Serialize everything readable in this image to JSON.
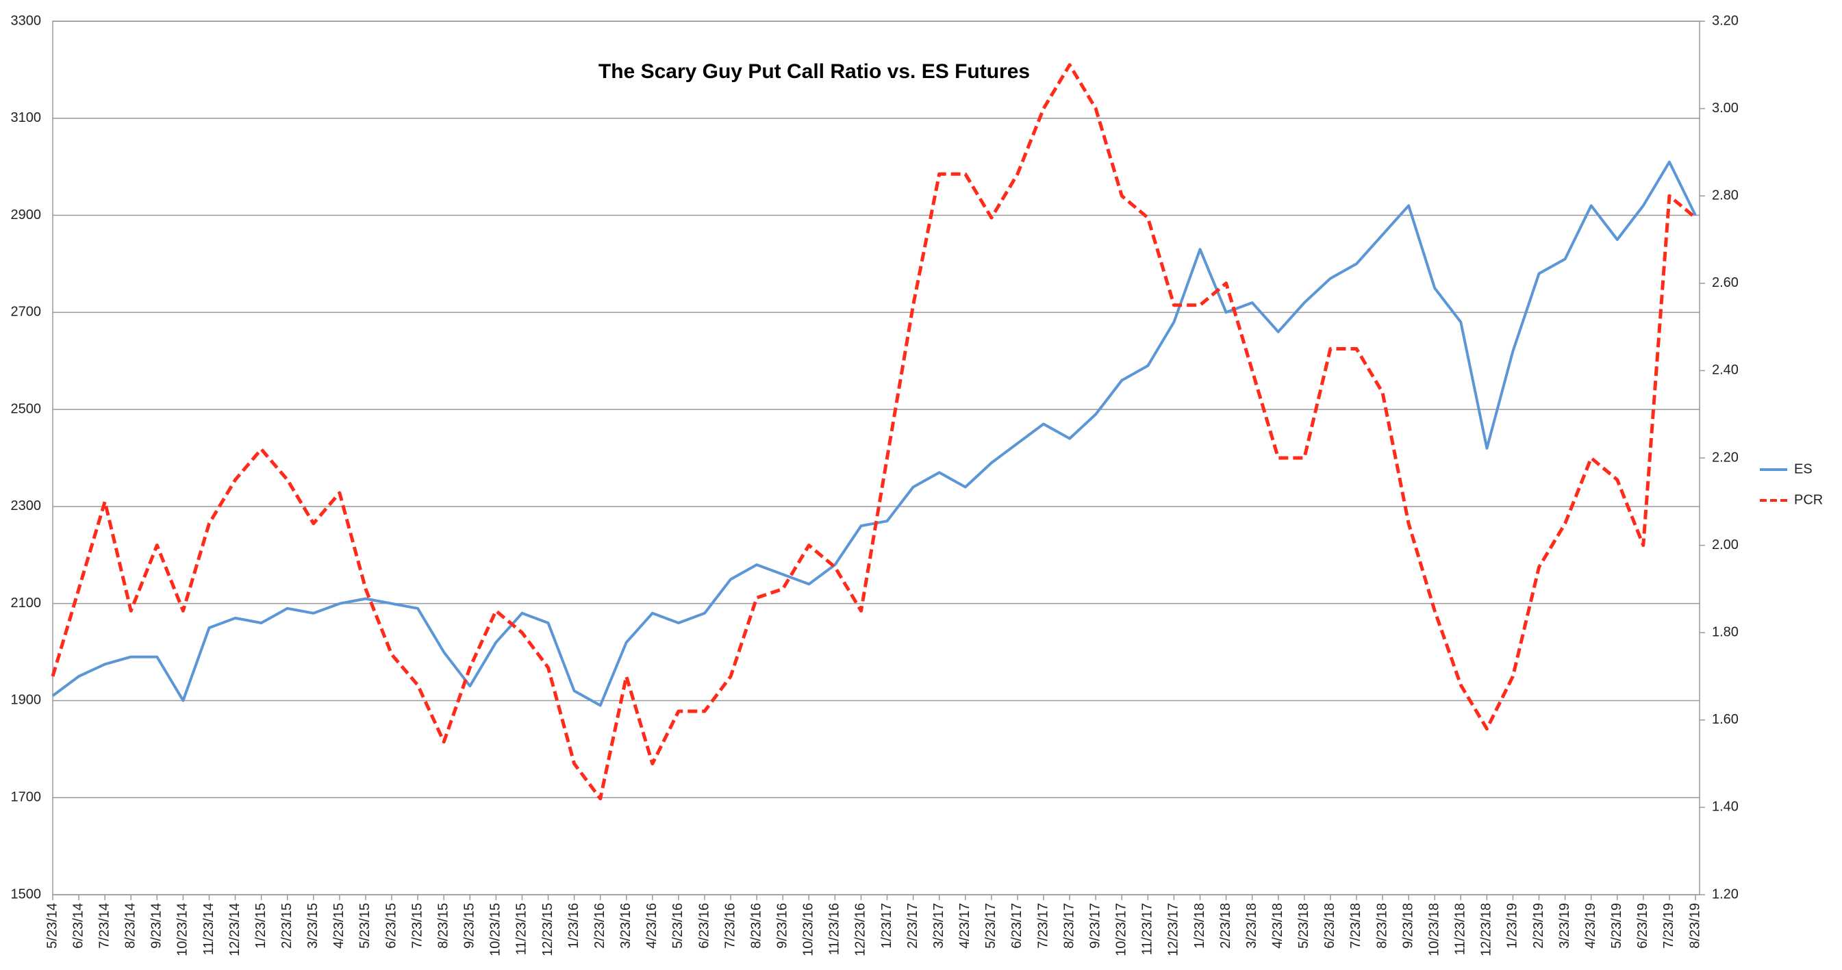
{
  "chart_data": {
    "type": "line",
    "title": "The Scary Guy Put Call Ratio vs. ES Futures",
    "categories": [
      "5/23/14",
      "6/23/14",
      "7/23/14",
      "8/23/14",
      "9/23/14",
      "10/23/14",
      "11/23/14",
      "12/23/14",
      "1/23/15",
      "2/23/15",
      "3/23/15",
      "4/23/15",
      "5/23/15",
      "6/23/15",
      "7/23/15",
      "8/23/15",
      "9/23/15",
      "10/23/15",
      "11/23/15",
      "12/23/15",
      "1/23/16",
      "2/23/16",
      "3/23/16",
      "4/23/16",
      "5/23/16",
      "6/23/16",
      "7/23/16",
      "8/23/16",
      "9/23/16",
      "10/23/16",
      "11/23/16",
      "12/23/16",
      "1/23/17",
      "2/23/17",
      "3/23/17",
      "4/23/17",
      "5/23/17",
      "6/23/17",
      "7/23/17",
      "8/23/17",
      "9/23/17",
      "10/23/17",
      "11/23/17",
      "12/23/17",
      "1/23/18",
      "2/23/18",
      "3/23/18",
      "4/23/18",
      "5/23/18",
      "6/23/18",
      "7/23/18",
      "8/23/18",
      "9/23/18",
      "10/23/18",
      "11/23/18",
      "12/23/18",
      "1/23/19",
      "2/23/19",
      "3/23/19",
      "4/23/19",
      "5/23/19",
      "6/23/19",
      "7/23/19",
      "8/23/19"
    ],
    "series": [
      {
        "name": "ES",
        "color": "#5b96d6",
        "line_style": "solid",
        "values": [
          1910,
          1950,
          1975,
          1990,
          1990,
          1900,
          2050,
          2070,
          2060,
          2090,
          2080,
          2100,
          2110,
          2100,
          2090,
          2000,
          1930,
          2020,
          2080,
          2060,
          1920,
          1890,
          2020,
          2080,
          2060,
          2080,
          2150,
          2180,
          2160,
          2140,
          2180,
          2260,
          2270,
          2340,
          2370,
          2340,
          2390,
          2430,
          2470,
          2440,
          2490,
          2560,
          2590,
          2680,
          2830,
          2700,
          2720,
          2660,
          2720,
          2770,
          2800,
          2860,
          2920,
          2750,
          2680,
          2420,
          2620,
          2780,
          2810,
          2920,
          2850,
          2920,
          3010,
          2900
        ]
      },
      {
        "name": "PCR",
        "color": "#ff2a1a",
        "line_style": "dashed",
        "axis": "y2",
        "values": [
          1.7,
          1.9,
          2.1,
          1.85,
          2.0,
          1.85,
          2.05,
          2.15,
          2.22,
          2.15,
          2.05,
          2.12,
          1.9,
          1.75,
          1.68,
          1.55,
          1.72,
          1.85,
          1.8,
          1.72,
          1.5,
          1.42,
          1.7,
          1.5,
          1.62,
          1.62,
          1.7,
          1.88,
          1.9,
          2.0,
          1.95,
          1.85,
          2.2,
          2.55,
          2.85,
          2.85,
          2.75,
          2.85,
          3.0,
          3.1,
          3.0,
          2.8,
          2.75,
          2.55,
          2.55,
          2.6,
          2.4,
          2.2,
          2.2,
          2.45,
          2.45,
          2.35,
          2.05,
          1.85,
          1.68,
          1.58,
          1.7,
          1.95,
          2.05,
          2.2,
          2.15,
          2.0,
          2.8,
          2.75
        ]
      }
    ],
    "ylim": [
      1500,
      3300
    ],
    "yticks": [
      1500,
      1700,
      1900,
      2100,
      2300,
      2500,
      2700,
      2900,
      3100,
      3300
    ],
    "y2lim": [
      1.2,
      3.2
    ],
    "y2ticks": [
      {
        "value": 1.2,
        "label": "1.20"
      },
      {
        "value": 1.4,
        "label": "1.40"
      },
      {
        "value": 1.6,
        "label": "1.60"
      },
      {
        "value": 1.8,
        "label": "1.80"
      },
      {
        "value": 2.0,
        "label": "2.00"
      },
      {
        "value": 2.2,
        "label": "2.20"
      },
      {
        "value": 2.4,
        "label": "2.40"
      },
      {
        "value": 2.6,
        "label": "2.60"
      },
      {
        "value": 2.8,
        "label": "2.80"
      },
      {
        "value": 3.0,
        "label": "3.00"
      },
      {
        "value": 3.2,
        "label": "3.20"
      }
    ],
    "grid": true,
    "legend": "right"
  }
}
